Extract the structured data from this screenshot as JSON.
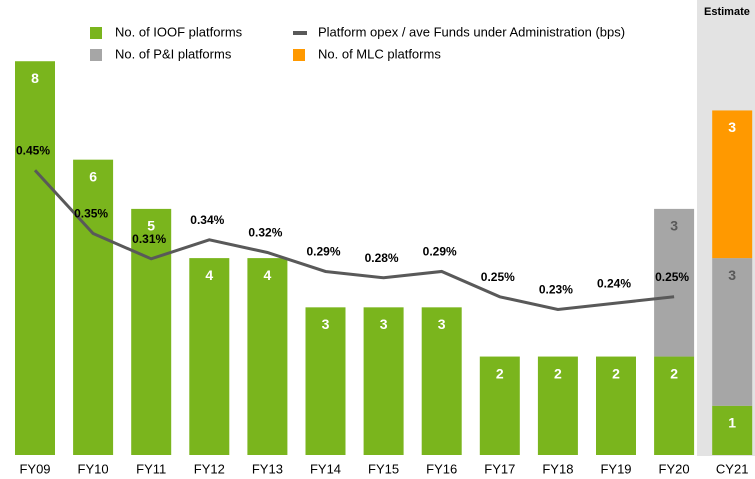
{
  "chart_data": {
    "type": "bar",
    "estimate_label": "Estimate",
    "categories": [
      "FY09",
      "FY10",
      "FY11",
      "FY12",
      "FY13",
      "FY14",
      "FY15",
      "FY16",
      "FY17",
      "FY18",
      "FY19",
      "FY20",
      "CY21"
    ],
    "series": [
      {
        "name": "No. of IOOF platforms",
        "color": "#7ab51d",
        "label_color": "#ffffff",
        "values": [
          8,
          6,
          5,
          4,
          4,
          3,
          3,
          3,
          2,
          2,
          2,
          2,
          1
        ]
      },
      {
        "name": "No. of P&I platforms",
        "color": "#a6a6a6",
        "label_color": "#595959",
        "values": [
          null,
          null,
          null,
          null,
          null,
          null,
          null,
          null,
          null,
          null,
          null,
          3,
          3
        ]
      },
      {
        "name": "No. of MLC platforms",
        "color": "#ff9900",
        "label_color": "#ffffff",
        "values": [
          null,
          null,
          null,
          null,
          null,
          null,
          null,
          null,
          null,
          null,
          null,
          null,
          3
        ]
      },
      {
        "name": "Platform opex / ave Funds under Administration (bps)",
        "type": "line",
        "axis": "y2",
        "color": "#595959",
        "values": [
          0.45,
          0.35,
          0.31,
          0.34,
          0.32,
          0.29,
          0.28,
          0.29,
          0.25,
          0.23,
          0.24,
          0.25,
          null
        ],
        "value_labels": [
          "0.45%",
          "0.35%",
          "0.31%",
          "0.34%",
          "0.32%",
          "0.29%",
          "0.28%",
          "0.29%",
          "0.25%",
          "0.23%",
          "0.24%",
          "0.25%",
          null
        ]
      }
    ],
    "ylim": [
      0,
      9
    ],
    "y2lim": [
      0,
      0.7
    ]
  }
}
